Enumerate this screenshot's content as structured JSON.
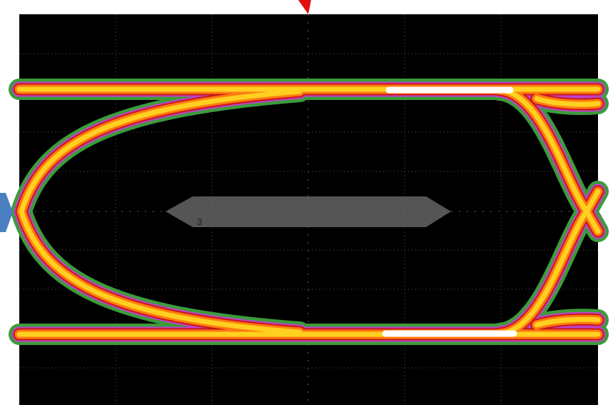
{
  "mask": {
    "label": "3"
  }
}
